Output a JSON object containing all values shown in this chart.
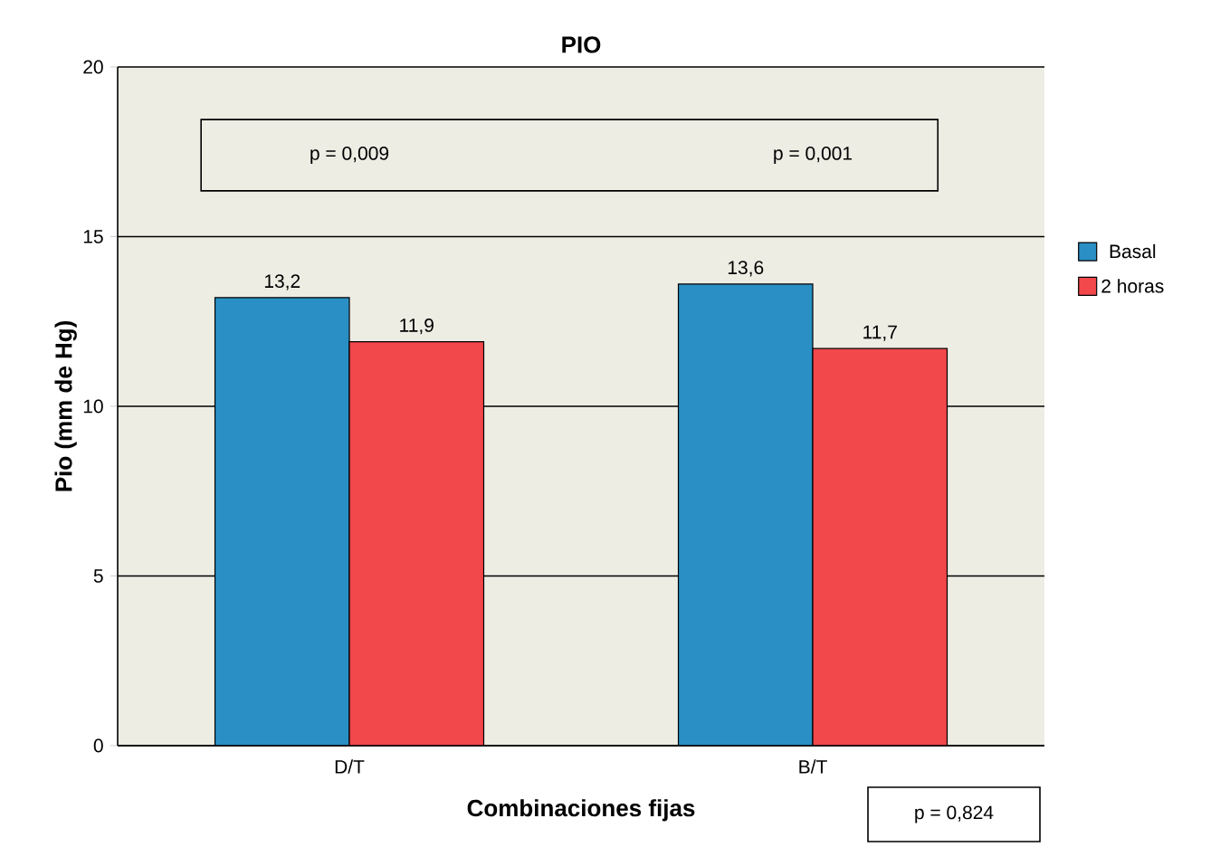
{
  "chart_data": {
    "type": "bar",
    "title": "PIO",
    "xlabel": "Combinaciones fijas",
    "ylabel": "Pio (mm de Hg)",
    "categories": [
      "D/T",
      "B/T"
    ],
    "series": [
      {
        "name": "Basal",
        "color": "#2a8fc4",
        "values": [
          13.2,
          13.6
        ],
        "value_labels": [
          "13,2",
          "13,6"
        ]
      },
      {
        "name": "2 horas",
        "color": "#f2474b",
        "values": [
          11.9,
          11.7
        ],
        "value_labels": [
          "11,9",
          "11,7"
        ]
      }
    ],
    "ylim": [
      0,
      20
    ],
    "yticks": [
      0,
      5,
      10,
      15,
      20
    ],
    "grid": "y",
    "legend": "right",
    "annotations": [
      "p = 0,009",
      "p = 0,001",
      "p = 0,824"
    ]
  }
}
